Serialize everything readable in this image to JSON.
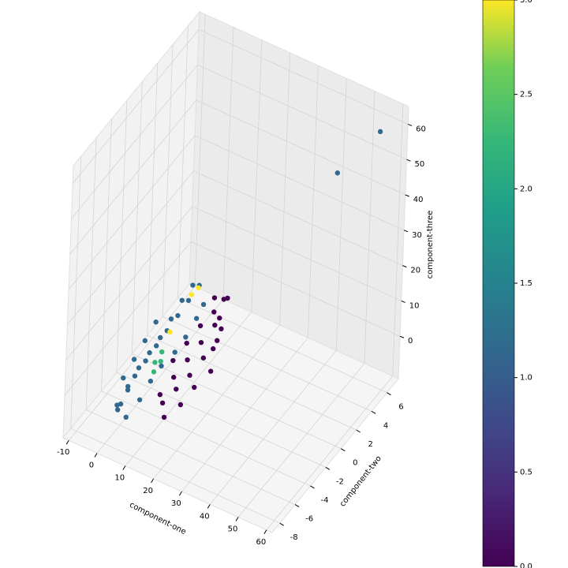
{
  "chart_data": {
    "type": "scatter3d",
    "xlabel": "component-one",
    "ylabel": "component-two",
    "zlabel": "component-three",
    "xlim": [
      -12,
      62
    ],
    "ylim": [
      -9,
      7.5
    ],
    "zlim": [
      -12,
      65
    ],
    "xticks": [
      -10,
      0,
      10,
      20,
      30,
      40,
      50,
      60
    ],
    "yticks": [
      -8,
      -6,
      -4,
      -2,
      0,
      2,
      4,
      6
    ],
    "zticks": [
      0,
      10,
      20,
      30,
      40,
      50,
      60
    ],
    "grid": true,
    "colorbar": {
      "clim": [
        0,
        3
      ],
      "ticks": [
        {
          "value": 0,
          "label": "0.0"
        },
        {
          "value": 0.5,
          "label": "0.5"
        },
        {
          "value": 1,
          "label": "1.0"
        },
        {
          "value": 1.5,
          "label": "1.5"
        },
        {
          "value": 2,
          "label": "2.0"
        },
        {
          "value": 2.5,
          "label": "2.5"
        },
        {
          "value": 3,
          "label": "3.0"
        }
      ]
    },
    "series": [
      {
        "color": "#440154",
        "x": [
          12,
          14,
          16,
          18,
          20,
          18,
          18,
          16,
          19,
          17,
          15,
          13,
          11,
          14,
          17,
          19,
          22,
          20,
          20,
          10,
          12,
          14,
          16,
          18
        ],
        "y": [
          -5,
          -4,
          -3,
          -2,
          -1,
          0,
          0.5,
          0,
          -1,
          -2,
          -3,
          -4,
          -5,
          -5.5,
          -4.5,
          -3.5,
          -2.5,
          -1.5,
          -0.5,
          -3,
          -2,
          -1,
          0,
          1
        ],
        "z": [
          -4,
          -2,
          0,
          3,
          6,
          9,
          13,
          14,
          10,
          7,
          4,
          1,
          -2,
          -6,
          -4,
          -1,
          2,
          5,
          8,
          2,
          5,
          8,
          10,
          12
        ]
      },
      {
        "color": "#31688e",
        "x": [
          0,
          1,
          2,
          3,
          4,
          5,
          6,
          7,
          8,
          7,
          6,
          5,
          4,
          3,
          2,
          1,
          0,
          -1,
          2,
          4,
          5,
          6,
          8,
          9,
          10,
          11,
          -2,
          -1,
          0,
          1,
          47,
          55
        ],
        "y": [
          -6,
          -5.5,
          -5,
          -4,
          -3,
          -2,
          -1,
          0,
          1,
          0.5,
          -0.5,
          -1.5,
          -2.5,
          -3.5,
          -4.5,
          -5.5,
          -6.5,
          -6,
          -6,
          -5,
          -4,
          -3,
          -2,
          -1,
          0,
          0.5,
          -5,
          -4,
          -3,
          -2,
          4,
          6.5
        ],
        "z": [
          -6,
          -3,
          0,
          2,
          4,
          6,
          8,
          10,
          12,
          13,
          11,
          8,
          5,
          3,
          1,
          -2,
          -5,
          -8,
          -9,
          -6,
          -3,
          -1,
          1,
          3,
          6,
          9,
          -2,
          1,
          4,
          7,
          50,
          58
        ]
      },
      {
        "color": "#35b779",
        "x": [
          6,
          7,
          6,
          5
        ],
        "y": [
          -4,
          -3.5,
          -3,
          -3.5
        ],
        "z": [
          0,
          2,
          3,
          1
        ]
      },
      {
        "color": "#fde725",
        "x": [
          8,
          9,
          6
        ],
        "y": [
          0,
          0.5,
          -2
        ],
        "z": [
          12,
          13,
          6
        ]
      }
    ]
  }
}
